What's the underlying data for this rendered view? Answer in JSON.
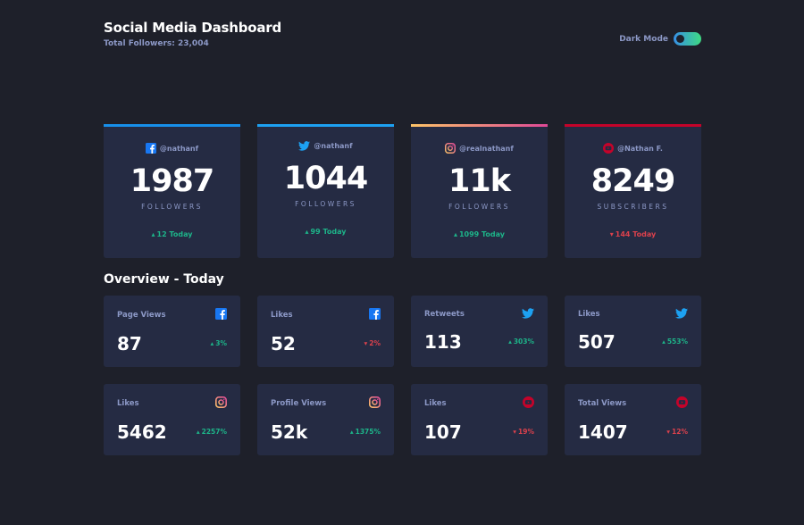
{
  "header": {
    "title": "Social Media Dashboard",
    "total_followers": "Total Followers: 23,004"
  },
  "theme_toggle": {
    "label": "Dark Mode",
    "enabled": true
  },
  "colors": {
    "facebook": "#1877f2",
    "twitter": "#1da1f2",
    "instagram_gradient": [
      "#fdc468",
      "#df4996"
    ],
    "youtube": "#c4032a",
    "up": "#1db489",
    "down": "#dc414c"
  },
  "followers": [
    {
      "platform": "facebook",
      "icon": "facebook-icon",
      "handle": "@nathanf",
      "count": "1987",
      "label": "FOLLOWERS",
      "today": "12 Today",
      "trend": "up"
    },
    {
      "platform": "twitter",
      "icon": "twitter-icon",
      "handle": "@nathanf",
      "count": "1044",
      "label": "FOLLOWERS",
      "today": "99 Today",
      "trend": "up"
    },
    {
      "platform": "instagram",
      "icon": "instagram-icon",
      "handle": "@realnathanf",
      "count": "11k",
      "label": "FOLLOWERS",
      "today": "1099 Today",
      "trend": "up"
    },
    {
      "platform": "youtube",
      "icon": "youtube-icon",
      "handle": "@Nathan F.",
      "count": "8249",
      "label": "SUBSCRIBERS",
      "today": "144 Today",
      "trend": "down"
    }
  ],
  "overview": {
    "title": "Overview - Today",
    "cards": [
      {
        "metric": "Page Views",
        "icon": "facebook-icon",
        "value": "87",
        "change": "3%",
        "trend": "up"
      },
      {
        "metric": "Likes",
        "icon": "facebook-icon",
        "value": "52",
        "change": "2%",
        "trend": "down"
      },
      {
        "metric": "Retweets",
        "icon": "twitter-icon",
        "value": "113",
        "change": "303%",
        "trend": "up"
      },
      {
        "metric": "Likes",
        "icon": "twitter-icon",
        "value": "507",
        "change": "553%",
        "trend": "up"
      },
      {
        "metric": "Likes",
        "icon": "instagram-icon",
        "value": "5462",
        "change": "2257%",
        "trend": "up"
      },
      {
        "metric": "Profile Views",
        "icon": "instagram-icon",
        "value": "52k",
        "change": "1375%",
        "trend": "up"
      },
      {
        "metric": "Likes",
        "icon": "youtube-icon",
        "value": "107",
        "change": "19%",
        "trend": "down"
      },
      {
        "metric": "Total Views",
        "icon": "youtube-icon",
        "value": "1407",
        "change": "12%",
        "trend": "down"
      }
    ]
  }
}
